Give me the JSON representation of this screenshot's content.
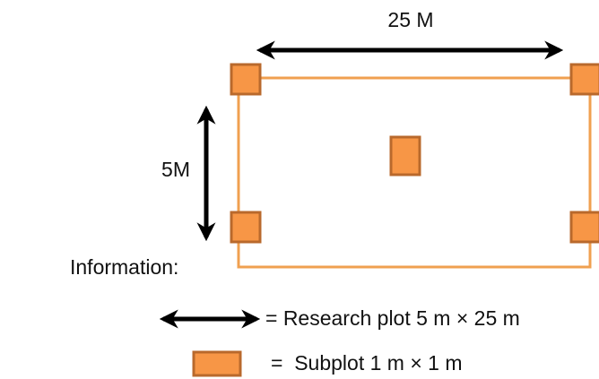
{
  "labels": {
    "width": "25 M",
    "height": "5M",
    "information": "Information:"
  },
  "legend": {
    "arrow_text": "= Research plot 5 m × 25 m",
    "subplot_text": "=  Subplot 1 m × 1 m"
  },
  "colors": {
    "plot_outline": "#F0A050",
    "subplot_fill": "#F79646",
    "subplot_border": "#B9692C",
    "arrow": "#000000"
  }
}
